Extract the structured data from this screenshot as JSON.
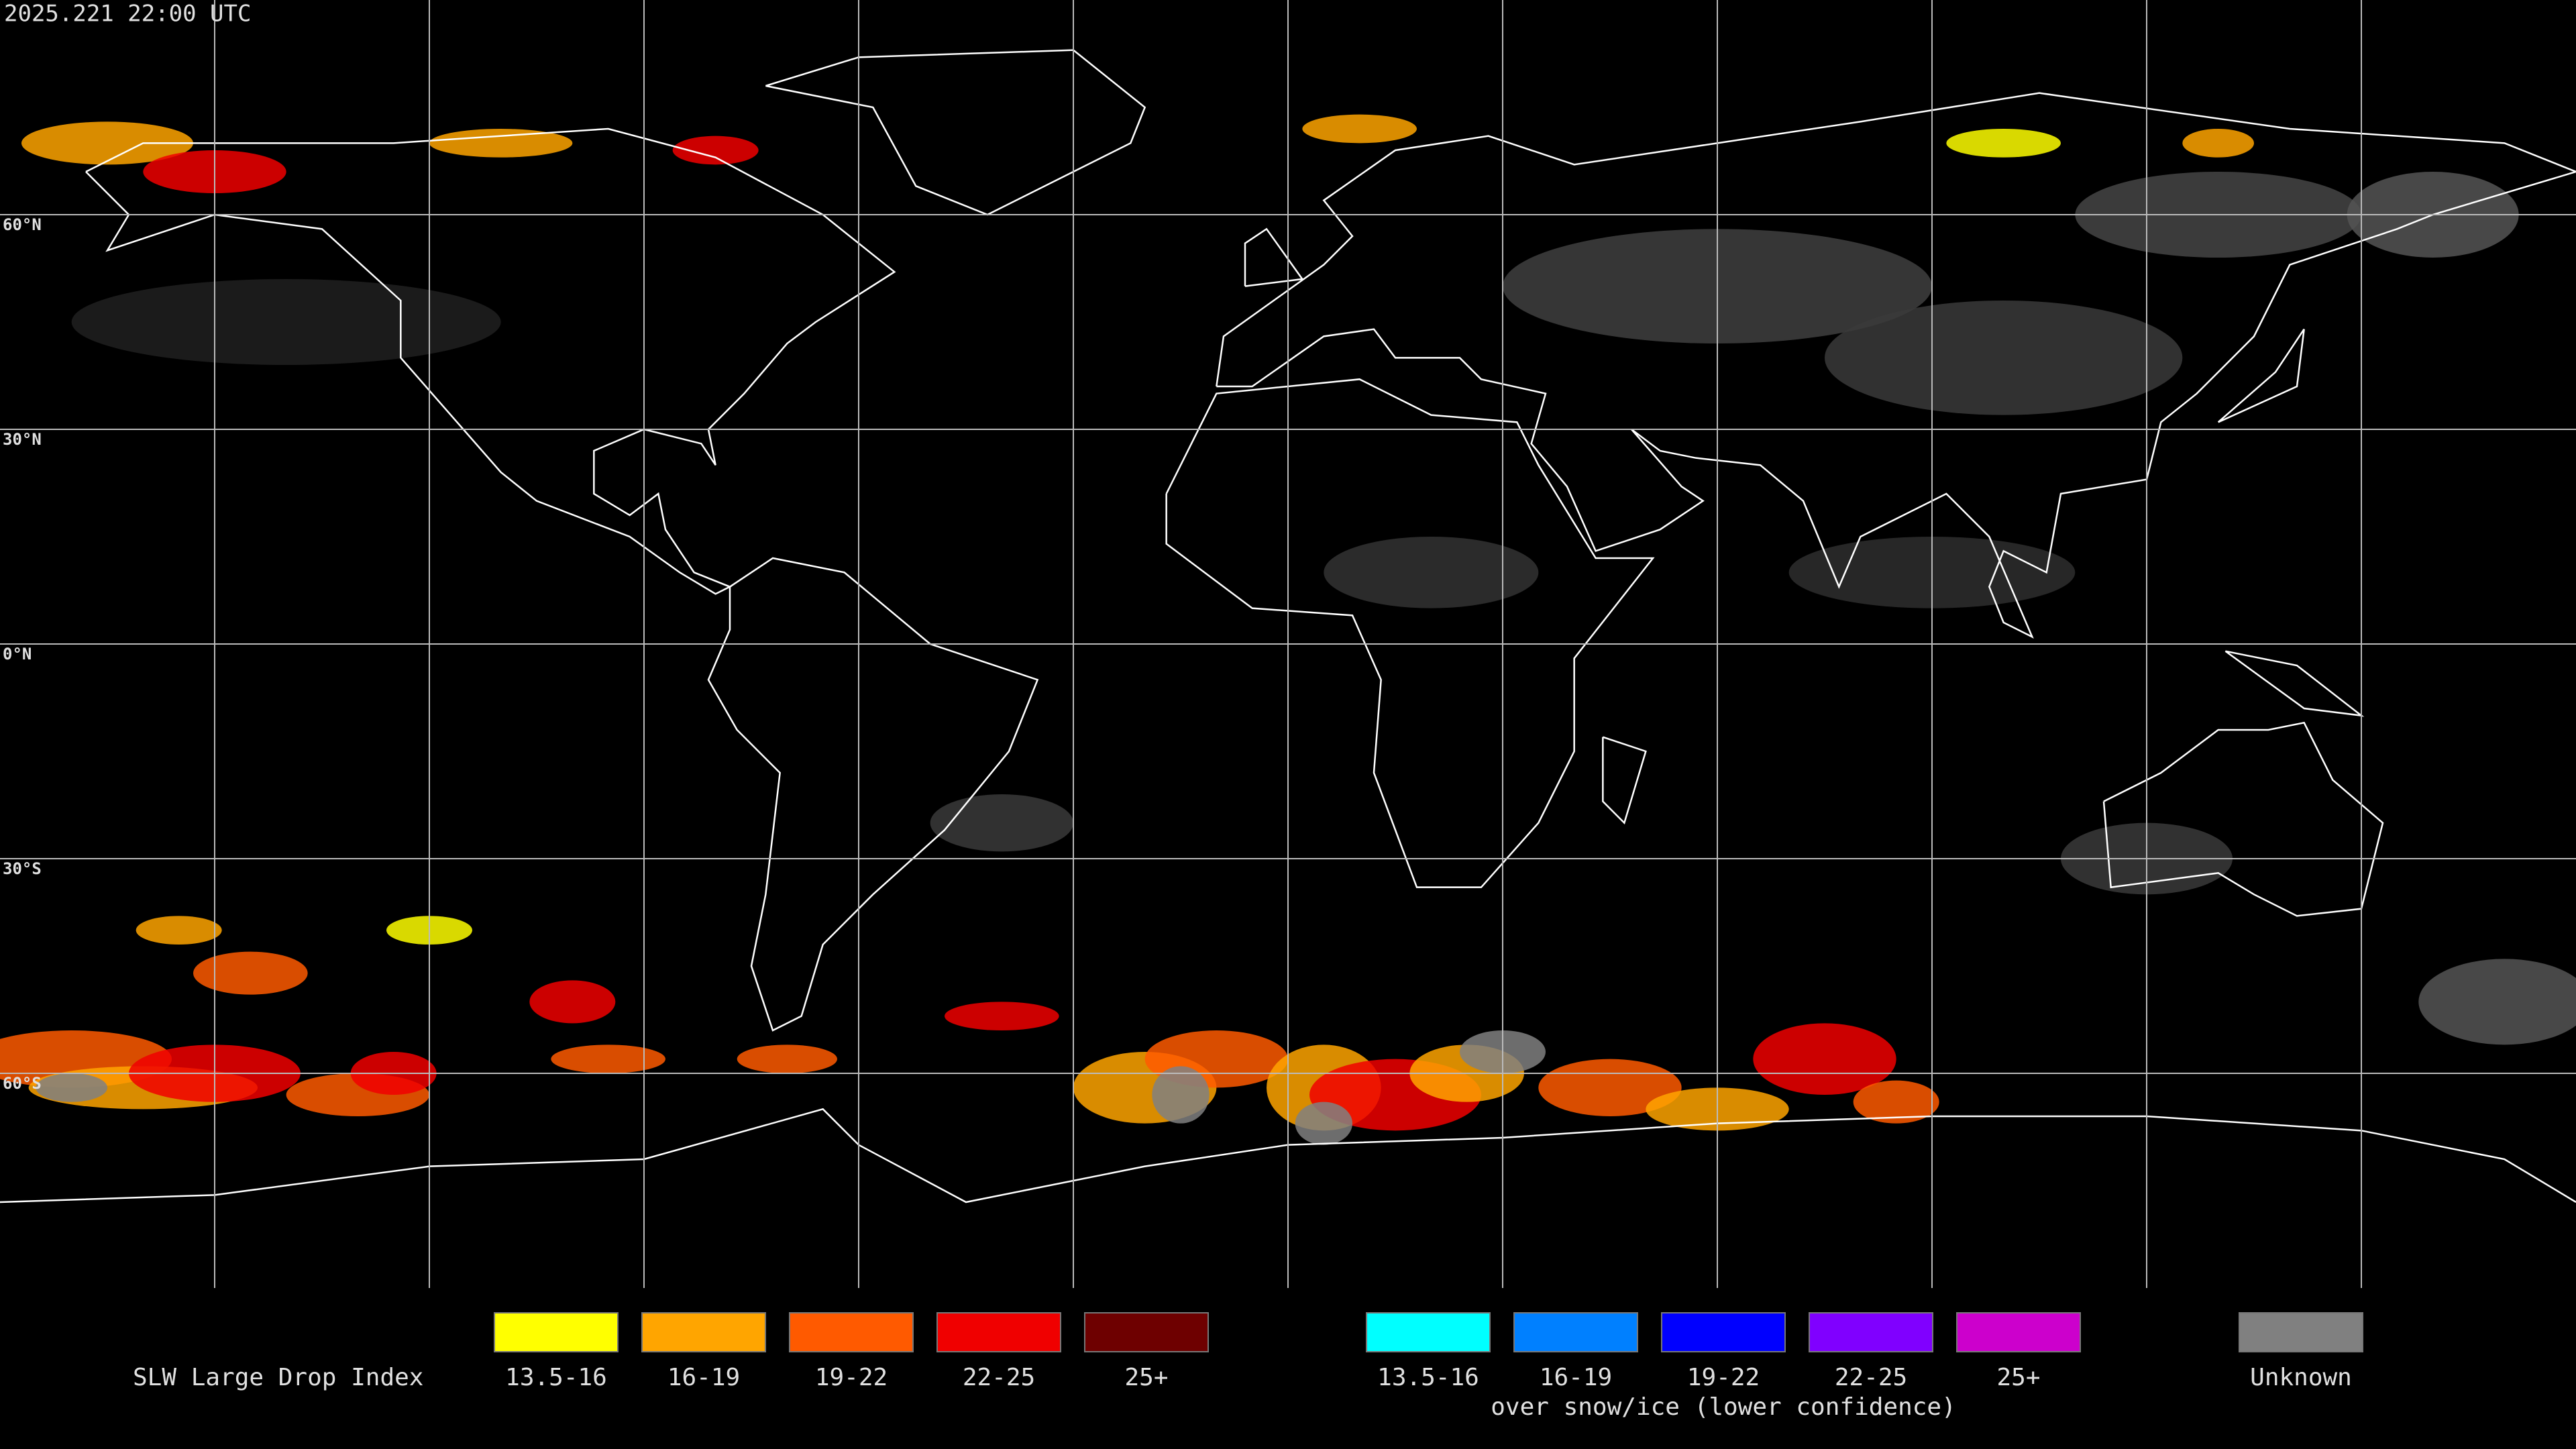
{
  "header": {
    "timestamp": "2025.221 22:00 UTC"
  },
  "map": {
    "lat_labels": [
      "60°N",
      "30°N",
      "0°N",
      "30°S",
      "60°S"
    ]
  },
  "legend": {
    "title": "SLW Large Drop Index",
    "items": [
      {
        "label": "13.5-16",
        "color": "#ffff00"
      },
      {
        "label": "16-19",
        "color": "#ffa500"
      },
      {
        "label": "19-22",
        "color": "#ff5a00"
      },
      {
        "label": "22-25",
        "color": "#f00000"
      },
      {
        "label": "25+",
        "color": "#6e0000"
      }
    ],
    "snow_items": [
      {
        "label": "13.5-16",
        "color": "#00ffff"
      },
      {
        "label": "16-19",
        "color": "#0080ff"
      },
      {
        "label": "19-22",
        "color": "#0000ff"
      },
      {
        "label": "22-25",
        "color": "#8000ff"
      },
      {
        "label": "25+",
        "color": "#cc00cc"
      }
    ],
    "snow_caption": "over snow/ice (lower confidence)",
    "unknown": {
      "label": "Unknown",
      "color": "#808080"
    }
  }
}
